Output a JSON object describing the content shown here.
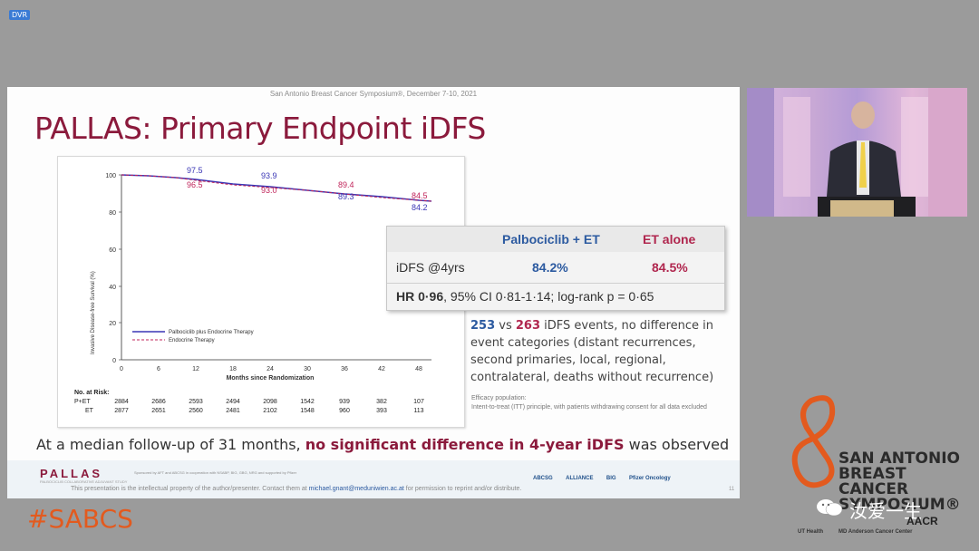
{
  "dvr_label": "DVR",
  "slide": {
    "header": "San Antonio Breast Cancer Symposium®, December 7-10, 2021",
    "title": "PALLAS: Primary Endpoint iDFS",
    "km": {
      "ylabel": "Invasive Disease-free Survival (%)",
      "xlabel": "Months since Randomization",
      "yticks": [
        "0",
        "20",
        "40",
        "60",
        "80",
        "100"
      ],
      "xticks": [
        "0",
        "6",
        "12",
        "18",
        "24",
        "30",
        "36",
        "42",
        "48"
      ],
      "annot_blue": [
        "97.5",
        "93.9",
        "89.3",
        "84.2"
      ],
      "annot_red": [
        "96.5",
        "93.0",
        "89.4",
        "84.5"
      ],
      "legend": [
        "Palbociclib plus Endocrine Therapy",
        "Endocrine Therapy"
      ],
      "risk_title": "No. at Risk:",
      "risk_rows": [
        {
          "label": "P+ET",
          "values": [
            "2884",
            "2686",
            "2593",
            "2494",
            "2098",
            "1542",
            "939",
            "382",
            "107"
          ]
        },
        {
          "label": "ET",
          "values": [
            "2877",
            "2651",
            "2560",
            "2481",
            "2102",
            "1548",
            "960",
            "393",
            "113"
          ]
        }
      ],
      "colors": {
        "palbo": "#3a36b5",
        "et": "#c0245a"
      }
    },
    "stat_box": {
      "col1": "Palbociclib + ET",
      "col2": "ET alone",
      "row_label": "iDFS @4yrs",
      "val1": "84.2%",
      "val2": "84.5%",
      "hr_bold": "HR 0·96",
      "hr_rest": ", 95% CI 0·81-1·14; log-rank p = 0·65"
    },
    "events": {
      "n1": "253",
      "vs": " vs ",
      "n2": "263",
      "text": " iDFS events, no difference in event categories (distant recurrences, second primaries, local, regional, contralateral, deaths without recurrence)"
    },
    "efficacy_note": {
      "line1": "Efficacy population:",
      "line2": "Intent-to-treat (ITT) principle, with patients withdrawing consent for all data excluded"
    },
    "followup": {
      "pre": "At a median follow-up of 31 months, ",
      "bold": "no significant difference in 4-year iDFS",
      "post": " was observed"
    },
    "footer": {
      "logo": "PALLAS",
      "logo_sub": "PALBOCICLIB COLLABORATIVE ADJUVANT STUDY",
      "sponsor": "Sponsored by AFT and ABCSG in cooperation with NSABP, BIG, GBG, NRG and supported by Pfizer",
      "partners": [
        "ABCSG",
        "ALLIANCE",
        "BIG",
        "Pfizer Oncology"
      ],
      "copyright_pre": "This presentation is the intellectual property of the author/presenter. Contact them at ",
      "email": "michael.gnant@meduniwien.ac.at",
      "copyright_post": " for permission to reprint and/or distribute.",
      "page": "11"
    }
  },
  "hashtag": "#SABCS",
  "branding": {
    "line1": "SAN ANTONIO",
    "line2": "BREAST CANCER",
    "line3": "SYMPOSIUM®",
    "wechat_text": "汝爱一生",
    "uthealth": "UT Health",
    "mdanderson": "MD Anderson Cancer Center",
    "aacr": "AACR"
  }
}
